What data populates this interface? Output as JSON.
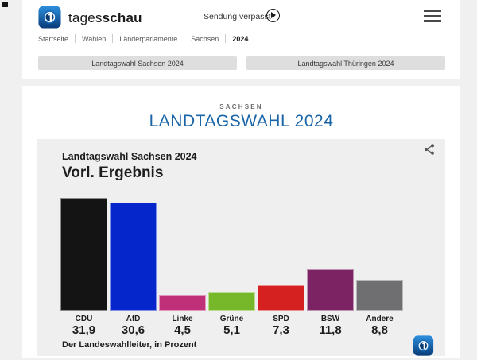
{
  "header": {
    "brand": {
      "light": "tages",
      "bold": "schau"
    },
    "sendung_verpasst": "Sendung verpasst?",
    "breadcrumb": [
      "Startseite",
      "Wahlen",
      "Länderparlamente",
      "Sachsen",
      "2024"
    ],
    "nav_buttons": [
      "Landtagswahl Sachsen 2024",
      "Landtagswahl Thüringen 2024"
    ]
  },
  "main": {
    "kicker": "SACHSEN",
    "title": "LANDTAGSWAHL 2024",
    "title_color": "#1a65a8"
  },
  "chart_data": {
    "type": "bar",
    "title": "Landtagswahl Sachsen 2024",
    "subtitle": "Vorl. Ergebnis",
    "source_note": "Der Landeswahlleiter, in Prozent",
    "unit": "Prozent",
    "categories": [
      "CDU",
      "AfD",
      "Linke",
      "Grüne",
      "SPD",
      "BSW",
      "Andere"
    ],
    "values": [
      31.9,
      30.6,
      4.5,
      5.1,
      7.3,
      11.8,
      8.8
    ],
    "value_labels": [
      "31,9",
      "30,6",
      "4,5",
      "5,1",
      "7,3",
      "11,8",
      "8,8"
    ],
    "bar_colors": [
      "#141414",
      "#0526cb",
      "#bf3078",
      "#76b82a",
      "#d52221",
      "#7c2463",
      "#6f6f71"
    ],
    "ylim": [
      0,
      32.1
    ],
    "grid": false,
    "legend": false
  }
}
